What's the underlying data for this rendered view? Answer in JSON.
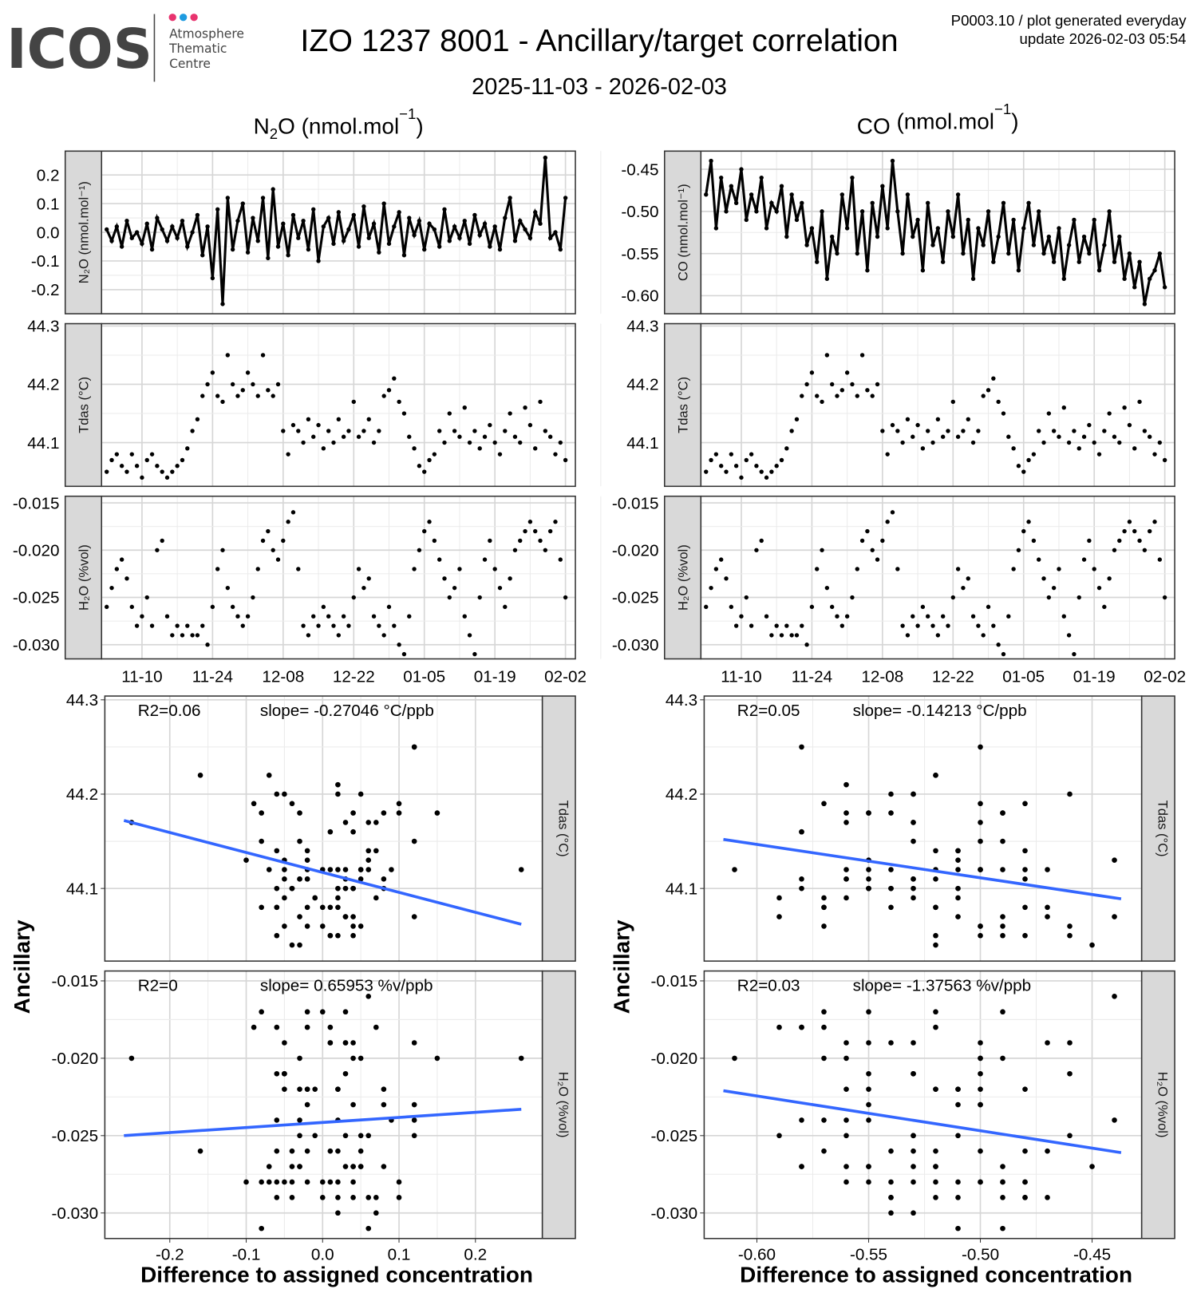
{
  "header": {
    "logo_text": "ICOS",
    "logo_sub": [
      "Atmosphere",
      "Thematic",
      "Centre"
    ],
    "title": "IZO 1237 8001 - Ancillary/target correlation",
    "subtitle": "2025-11-03 - 2026-02-03",
    "meta_line1": "P0003.10 / plot generated everyday",
    "meta_line2": "update  2026-02-03 05:54"
  },
  "colors": {
    "line": "#000000",
    "fit": "#3366ff",
    "strip": "#d9d9d9",
    "logo": "#444444",
    "dot_pink": "#e8336e",
    "dot_blue": "#1e9be0"
  },
  "columns": [
    {
      "species": "N",
      "sub": "2",
      "rest": "O (nmol.mol",
      "sup": "−1",
      "close": ")"
    },
    {
      "species": "CO",
      "sub": "",
      "rest": " (nmol.mol",
      "sup": "−1",
      "close": ")"
    }
  ],
  "chart_data": {
    "type": "line+scatter",
    "start_date": "2025-11-03",
    "x_ticks": [
      "11-10",
      "11-24",
      "12-08",
      "12-22",
      "01-05",
      "01-19",
      "02-02"
    ],
    "x_tick_days": [
      7,
      21,
      35,
      49,
      63,
      77,
      91
    ],
    "series": {
      "N2O": [
        0.01,
        -0.03,
        0.02,
        -0.05,
        0.04,
        -0.02,
        0.0,
        -0.04,
        0.03,
        -0.06,
        0.05,
        0.01,
        -0.03,
        0.02,
        -0.02,
        0.04,
        -0.05,
        0.0,
        0.06,
        -0.08,
        0.02,
        -0.16,
        0.08,
        -0.25,
        0.12,
        -0.06,
        0.04,
        0.1,
        -0.07,
        0.05,
        -0.03,
        0.12,
        -0.09,
        0.15,
        -0.05,
        0.03,
        -0.08,
        0.06,
        -0.02,
        0.04,
        -0.06,
        0.08,
        -0.1,
        0.02,
        0.05,
        -0.04,
        0.07,
        -0.03,
        0.01,
        0.06,
        -0.05,
        0.09,
        -0.02,
        0.03,
        -0.07,
        0.1,
        -0.04,
        0.02,
        0.07,
        -0.08,
        0.05,
        -0.01,
        0.04,
        -0.06,
        0.03,
        0.01,
        -0.05,
        0.08,
        -0.03,
        0.02,
        -0.02,
        0.04,
        -0.04,
        0.06,
        -0.01,
        0.03,
        -0.05,
        0.02,
        -0.06,
        0.05,
        0.12,
        -0.03,
        0.04,
        0.01,
        -0.02,
        0.07,
        0.03,
        0.26,
        -0.02,
        0.0,
        -0.06,
        0.12
      ],
      "CO": [
        -0.48,
        -0.44,
        -0.52,
        -0.46,
        -0.5,
        -0.47,
        -0.49,
        -0.45,
        -0.51,
        -0.48,
        -0.5,
        -0.46,
        -0.52,
        -0.49,
        -0.5,
        -0.47,
        -0.53,
        -0.48,
        -0.51,
        -0.49,
        -0.54,
        -0.52,
        -0.56,
        -0.5,
        -0.58,
        -0.53,
        -0.55,
        -0.48,
        -0.52,
        -0.46,
        -0.55,
        -0.5,
        -0.57,
        -0.49,
        -0.53,
        -0.47,
        -0.52,
        -0.44,
        -0.5,
        -0.55,
        -0.48,
        -0.53,
        -0.51,
        -0.57,
        -0.49,
        -0.54,
        -0.52,
        -0.56,
        -0.5,
        -0.53,
        -0.48,
        -0.55,
        -0.51,
        -0.58,
        -0.52,
        -0.54,
        -0.5,
        -0.56,
        -0.53,
        -0.49,
        -0.55,
        -0.51,
        -0.57,
        -0.52,
        -0.49,
        -0.54,
        -0.5,
        -0.55,
        -0.53,
        -0.56,
        -0.52,
        -0.58,
        -0.54,
        -0.51,
        -0.56,
        -0.53,
        -0.55,
        -0.51,
        -0.57,
        -0.54,
        -0.5,
        -0.56,
        -0.53,
        -0.58,
        -0.55,
        -0.59,
        -0.56,
        -0.61,
        -0.58,
        -0.57,
        -0.55,
        -0.59
      ],
      "Tdas": [
        44.05,
        44.07,
        44.08,
        44.06,
        44.05,
        44.08,
        44.06,
        44.04,
        44.07,
        44.08,
        44.06,
        44.05,
        44.04,
        44.05,
        44.06,
        44.07,
        44.09,
        44.12,
        44.14,
        44.18,
        44.2,
        44.22,
        44.18,
        44.17,
        44.25,
        44.2,
        44.18,
        44.19,
        44.22,
        44.2,
        44.18,
        44.25,
        44.19,
        44.18,
        44.2,
        44.12,
        44.08,
        44.13,
        44.12,
        44.1,
        44.14,
        44.11,
        44.13,
        44.09,
        44.12,
        44.1,
        44.14,
        44.11,
        44.12,
        44.17,
        44.11,
        44.12,
        44.14,
        44.1,
        44.12,
        44.18,
        44.19,
        44.21,
        44.17,
        44.15,
        44.11,
        44.09,
        44.06,
        44.05,
        44.07,
        44.08,
        44.12,
        44.1,
        44.15,
        44.12,
        44.11,
        44.16,
        44.1,
        44.12,
        44.09,
        44.11,
        44.13,
        44.1,
        44.08,
        44.12,
        44.15,
        44.11,
        44.1,
        44.16,
        44.13,
        44.09,
        44.17,
        44.12,
        44.11,
        44.08,
        44.1,
        44.07
      ],
      "H2O": [
        -0.026,
        -0.024,
        -0.022,
        -0.021,
        -0.023,
        -0.026,
        -0.028,
        -0.027,
        -0.025,
        -0.028,
        -0.02,
        -0.019,
        -0.027,
        -0.029,
        -0.028,
        -0.029,
        -0.028,
        -0.029,
        -0.029,
        -0.028,
        -0.03,
        -0.026,
        -0.022,
        -0.02,
        -0.024,
        -0.026,
        -0.027,
        -0.028,
        -0.027,
        -0.025,
        -0.022,
        -0.019,
        -0.018,
        -0.02,
        -0.021,
        -0.019,
        -0.017,
        -0.016,
        -0.022,
        -0.028,
        -0.029,
        -0.027,
        -0.028,
        -0.026,
        -0.027,
        -0.028,
        -0.029,
        -0.027,
        -0.028,
        -0.025,
        -0.022,
        -0.024,
        -0.023,
        -0.027,
        -0.028,
        -0.029,
        -0.026,
        -0.028,
        -0.03,
        -0.031,
        -0.027,
        -0.022,
        -0.02,
        -0.018,
        -0.017,
        -0.019,
        -0.021,
        -0.023,
        -0.025,
        -0.024,
        -0.022,
        -0.027,
        -0.029,
        -0.031,
        -0.025,
        -0.021,
        -0.019,
        -0.022,
        -0.024,
        -0.026,
        -0.023,
        -0.02,
        -0.019,
        -0.018,
        -0.017,
        -0.018,
        -0.019,
        -0.02,
        -0.018,
        -0.017,
        -0.021,
        -0.025
      ]
    },
    "time_panels": {
      "N2O": {
        "strip": "N₂O (nmol.mol⁻¹)",
        "ylim": [
          -0.284,
          0.283
        ],
        "ticks": [
          0.2,
          0.1,
          0.0,
          -0.1,
          -0.2
        ],
        "tick_labels": [
          "0.2",
          "0.1",
          "0.0",
          "-0.1",
          "-0.2"
        ]
      },
      "CO": {
        "strip": "CO (nmol.mol⁻¹)",
        "ylim": [
          -0.6215,
          -0.4284
        ],
        "ticks": [
          -0.45,
          -0.5,
          -0.55,
          -0.6
        ],
        "tick_labels": [
          "-0.45",
          "-0.50",
          "-0.55",
          "-0.60"
        ]
      },
      "Tdas": {
        "strip": "Tdas (°C)",
        "ylim": [
          44.025,
          44.304
        ],
        "ticks": [
          44.3,
          44.2,
          44.1
        ],
        "tick_labels": [
          "44.3",
          "44.2",
          "44.1"
        ]
      },
      "H2O": {
        "strip": "H₂O (%vol)",
        "ylim": [
          -0.0315,
          -0.0143
        ],
        "ticks": [
          -0.015,
          -0.02,
          -0.025,
          -0.03
        ],
        "tick_labels": [
          "-0.015",
          "-0.020",
          "-0.025",
          "-0.030"
        ]
      }
    },
    "scatter": {
      "ylabel": "Ancillary",
      "xlabel": "Difference to assigned concentration",
      "Tdas_ylim": [
        44.023,
        44.304
      ],
      "H2O_ylim": [
        -0.03165,
        -0.01436
      ],
      "N2O_xlim": [
        -0.285,
        0.2876
      ],
      "CO_xlim": [
        -0.6236,
        -0.4278
      ],
      "N2O_xticks": [
        -0.2,
        -0.1,
        0.0,
        0.1,
        0.2
      ],
      "N2O_xtick_labels": [
        "-0.2",
        "-0.1",
        "0.0",
        "0.1",
        "0.2"
      ],
      "CO_xticks": [
        -0.6,
        -0.55,
        -0.5,
        -0.45
      ],
      "CO_xtick_labels": [
        "-0.60",
        "-0.55",
        "-0.50",
        "-0.45"
      ],
      "fits": {
        "N2O_Tdas": {
          "r2": "R2=0.06",
          "slope": "slope= -0.27046 °C/ppb",
          "x": [
            -0.26,
            0.26
          ],
          "y": [
            44.172,
            44.062
          ]
        },
        "N2O_H2O": {
          "r2": "R2=0",
          "slope": "slope= 0.65953 %v/ppb",
          "x": [
            -0.26,
            0.26
          ],
          "y": [
            -0.025,
            -0.0233
          ]
        },
        "CO_Tdas": {
          "r2": "R2=0.05",
          "slope": "slope= -0.14213 °C/ppb",
          "x": [
            -0.615,
            -0.437
          ],
          "y": [
            44.152,
            44.089
          ]
        },
        "CO_H2O": {
          "r2": "R2=0.03",
          "slope": "slope= -1.37563 %v/ppb",
          "x": [
            -0.615,
            -0.437
          ],
          "y": [
            -0.0221,
            -0.0261
          ]
        }
      }
    }
  }
}
